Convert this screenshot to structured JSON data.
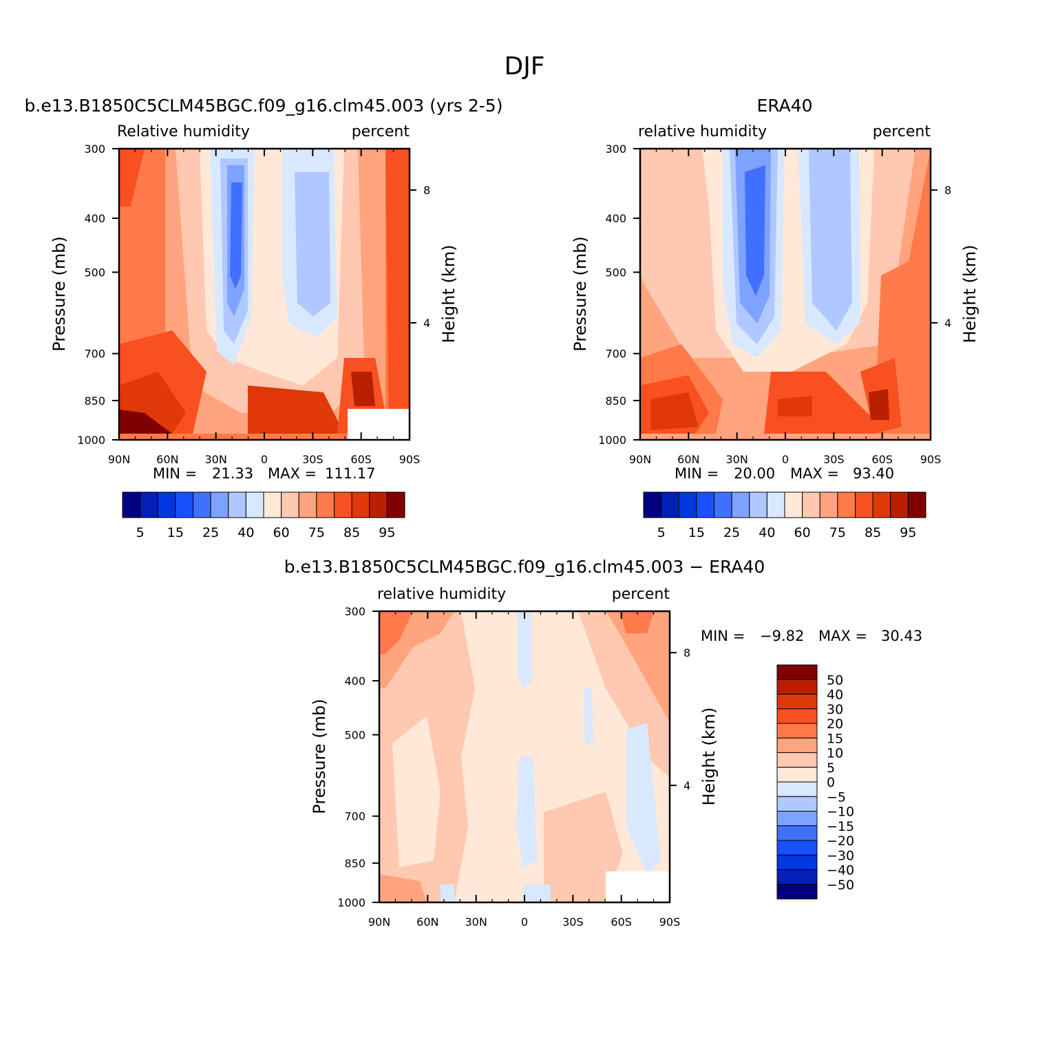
{
  "figure": {
    "season": "DJF"
  },
  "chart_data": [
    {
      "type": "heatmap",
      "title": "b.e13.B1850C5CLM45BGC.f09_g16.clm45.003 (yrs 2-5)",
      "subtitle_left": "Relative humidity",
      "subtitle_right": "percent",
      "ylabel": "Pressure (mb)",
      "ylabel_right": "Height (km)",
      "x_ticks": [
        "90N",
        "60N",
        "30N",
        "0",
        "30S",
        "60S",
        "90S"
      ],
      "x_values": [
        90,
        60,
        30,
        0,
        -30,
        -60,
        -90
      ],
      "y_ticks": [
        "300",
        "400",
        "500",
        "700",
        "850",
        "1000"
      ],
      "y_values": [
        300,
        400,
        500,
        700,
        850,
        1000
      ],
      "height_ticks": [
        "8",
        "4"
      ],
      "height_values": [
        8,
        4
      ],
      "yscale": "log",
      "min_label": "MIN =",
      "min_value": "21.33",
      "max_label": "MAX =",
      "max_value": "111.17",
      "colorbar_labels": [
        "5",
        "15",
        "25",
        "40",
        "60",
        "75",
        "85",
        "95"
      ]
    },
    {
      "type": "heatmap",
      "title": "ERA40",
      "subtitle_left": "relative humidity",
      "subtitle_right": "percent",
      "ylabel": "Pressure (mb)",
      "ylabel_right": "Height (km)",
      "x_ticks": [
        "90N",
        "60N",
        "30N",
        "0",
        "30S",
        "60S",
        "90S"
      ],
      "x_values": [
        90,
        60,
        30,
        0,
        -30,
        -60,
        -90
      ],
      "y_ticks": [
        "300",
        "400",
        "500",
        "700",
        "850",
        "1000"
      ],
      "y_values": [
        300,
        400,
        500,
        700,
        850,
        1000
      ],
      "height_ticks": [
        "8",
        "4"
      ],
      "height_values": [
        8,
        4
      ],
      "yscale": "log",
      "min_label": "MIN =",
      "min_value": "20.00",
      "max_label": "MAX =",
      "max_value": "93.40",
      "colorbar_labels": [
        "5",
        "15",
        "25",
        "40",
        "60",
        "75",
        "85",
        "95"
      ]
    },
    {
      "type": "heatmap",
      "title": "b.e13.B1850C5CLM45BGC.f09_g16.clm45.003 − ERA40",
      "subtitle_left": "relative humidity",
      "subtitle_right": "percent",
      "ylabel": "Pressure (mb)",
      "ylabel_right": "Height (km)",
      "x_ticks": [
        "90N",
        "60N",
        "30N",
        "0",
        "30S",
        "60S",
        "90S"
      ],
      "x_values": [
        90,
        60,
        30,
        0,
        -30,
        -60,
        -90
      ],
      "y_ticks": [
        "300",
        "400",
        "500",
        "700",
        "850",
        "1000"
      ],
      "y_values": [
        300,
        400,
        500,
        700,
        850,
        1000
      ],
      "height_ticks": [
        "8",
        "4"
      ],
      "height_values": [
        8,
        4
      ],
      "yscale": "log",
      "min_label": "MIN =",
      "min_value": "−9.82",
      "max_label": "MAX =",
      "max_value": "30.43",
      "colorbar_labels": [
        "50",
        "40",
        "30",
        "20",
        "15",
        "10",
        "5",
        "0",
        "−5",
        "−10",
        "−15",
        "−20",
        "−30",
        "−40",
        "−50"
      ]
    }
  ],
  "colors": {
    "abs_scale": [
      "#000080",
      "#0020b8",
      "#0038e0",
      "#1a50ff",
      "#4070ff",
      "#7ea2ff",
      "#b0c8ff",
      "#d8e8ff",
      "#ffe8d8",
      "#ffc8b0",
      "#ffa47e",
      "#ff7a4a",
      "#f85020",
      "#e03808",
      "#b82000",
      "#800000"
    ],
    "diff_scale": [
      "#800000",
      "#b82000",
      "#e03808",
      "#f85020",
      "#ff7a4a",
      "#ffa47e",
      "#ffc8b0",
      "#ffe8d8",
      "#d8e8ff",
      "#b0c8ff",
      "#7ea2ff",
      "#4070ff",
      "#1a50ff",
      "#0038e0",
      "#0020b8",
      "#000080"
    ]
  }
}
